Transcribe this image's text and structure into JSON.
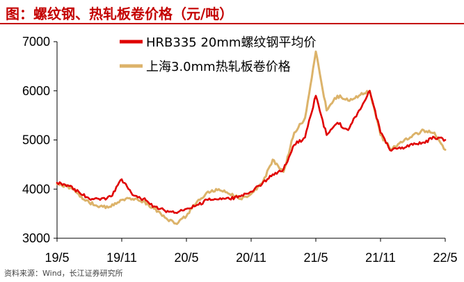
{
  "header": {
    "title": "图：螺纹钢、热轧板卷价格（元/吨）"
  },
  "footer": {
    "source": "资料来源：Wind，长江证券研究所"
  },
  "colors": {
    "title_red": "#c40000",
    "series_red": "#e00000",
    "series_gold": "#dcb36a"
  },
  "chart_data": {
    "type": "line",
    "title": "图：螺纹钢、热轧板卷价格（元/吨）",
    "xlabel": "",
    "ylabel": "",
    "ylim": [
      3000,
      7000
    ],
    "yticks": [
      3000,
      4000,
      5000,
      6000,
      7000
    ],
    "xticks": [
      "19/5",
      "19/11",
      "20/5",
      "20/11",
      "21/5",
      "21/11",
      "22/5"
    ],
    "x": [
      "2019-05",
      "2019-06",
      "2019-07",
      "2019-08",
      "2019-09",
      "2019-10",
      "2019-11",
      "2019-12",
      "2020-01",
      "2020-02",
      "2020-03",
      "2020-04",
      "2020-05",
      "2020-06",
      "2020-07",
      "2020-08",
      "2020-09",
      "2020-10",
      "2020-11",
      "2020-12",
      "2021-01",
      "2021-02",
      "2021-03",
      "2021-04",
      "2021-05",
      "2021-06",
      "2021-07",
      "2021-08",
      "2021-09",
      "2021-10",
      "2021-11",
      "2021-12",
      "2022-01",
      "2022-02",
      "2022-03",
      "2022-04",
      "2022-05"
    ],
    "series": [
      {
        "name": "HRB335 20mm螺纹钢平均价",
        "color": "#e00000",
        "values": [
          4130,
          4080,
          3950,
          3800,
          3780,
          3850,
          4200,
          3880,
          3800,
          3650,
          3560,
          3520,
          3600,
          3680,
          3780,
          3790,
          3800,
          3850,
          3950,
          4100,
          4300,
          4400,
          4900,
          5050,
          5900,
          5100,
          5350,
          5200,
          5600,
          6000,
          5150,
          4780,
          4850,
          4900,
          4950,
          5050,
          5000
        ]
      },
      {
        "name": "上海3.0mm热轧板卷价格",
        "color": "#dcb36a",
        "values": [
          4100,
          4050,
          3900,
          3720,
          3650,
          3640,
          3780,
          3800,
          3750,
          3600,
          3420,
          3300,
          3450,
          3750,
          3950,
          4000,
          3900,
          3800,
          3900,
          4100,
          4600,
          4350,
          5150,
          5450,
          6800,
          5600,
          5900,
          5800,
          5900,
          6000,
          5100,
          4800,
          4950,
          5100,
          5200,
          5150,
          4800
        ]
      }
    ],
    "legend": "top-center",
    "grid": false
  }
}
